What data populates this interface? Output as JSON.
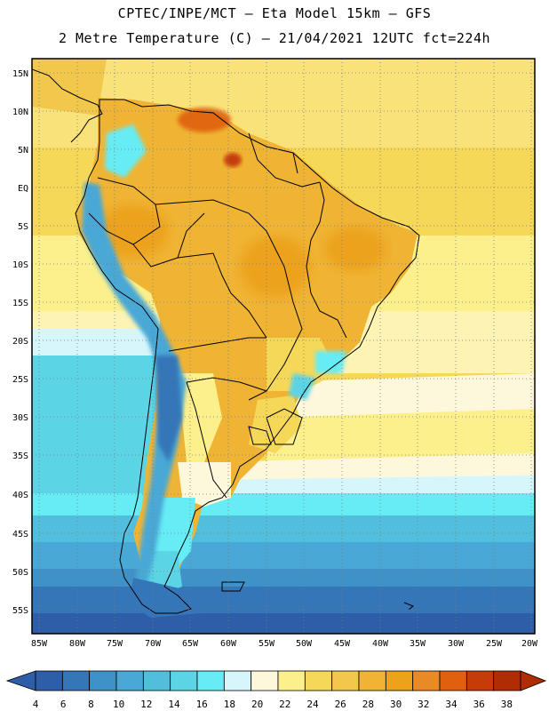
{
  "header": {
    "line1": "CPTEC/INPE/MCT –  Eta Model 15km – GFS",
    "line2": "2 Metre Temperature (C) – 21/04/2021 12UTC fct=224h"
  },
  "map": {
    "lat_labels": [
      "15N",
      "10N",
      "5N",
      "EQ",
      "5S",
      "10S",
      "15S",
      "20S",
      "25S",
      "30S",
      "35S",
      "40S",
      "45S",
      "50S",
      "55S"
    ],
    "lon_labels": [
      "85W",
      "80W",
      "75W",
      "70W",
      "65W",
      "60W",
      "55W",
      "50W",
      "45W",
      "40W",
      "35W",
      "30W",
      "25W",
      "20W"
    ]
  },
  "colorbar": {
    "labels": [
      "4",
      "6",
      "8",
      "10",
      "12",
      "14",
      "16",
      "18",
      "20",
      "22",
      "24",
      "26",
      "28",
      "30",
      "32",
      "34",
      "36",
      "38"
    ],
    "colors": [
      "#2f5ea8",
      "#3476b8",
      "#3f92c8",
      "#4aa8d6",
      "#52bede",
      "#5bd4e6",
      "#66ecf4",
      "#d6f6fc",
      "#fdf7dc",
      "#fcf08c",
      "#f6d858",
      "#f2c84c",
      "#f0b434",
      "#eca21a",
      "#ea8a26",
      "#e06010",
      "#c63c08",
      "#b02c04"
    ]
  },
  "colors": {
    "ocean_warm": "#f6d858",
    "land_hot": "#f0b434",
    "andes": "#3f92c8",
    "south_cold": "#2f5ea8"
  }
}
